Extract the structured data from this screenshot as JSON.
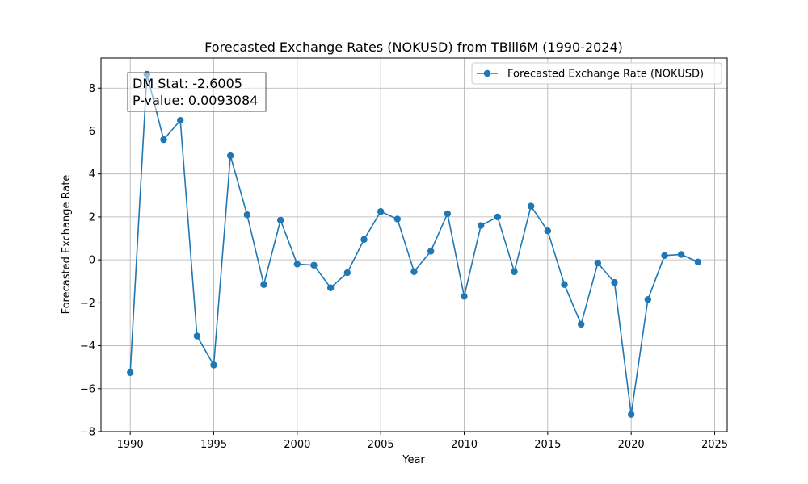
{
  "chart_data": {
    "type": "line",
    "title": "Forecasted Exchange Rates (NOKUSD) from TBill6M (1990-2024)",
    "xlabel": "Year",
    "ylabel": "Forecasted Exchange Rate",
    "xlim": [
      1988.25,
      2025.75
    ],
    "ylim": [
      -8.0,
      9.4
    ],
    "x_ticks": [
      1990,
      1995,
      2000,
      2005,
      2010,
      2015,
      2020,
      2025
    ],
    "y_ticks": [
      -8,
      -6,
      -4,
      -2,
      0,
      2,
      4,
      6,
      8
    ],
    "grid": true,
    "legend_position": "top-right",
    "series_color": "#1f77b4",
    "annotation": {
      "line1": "DM Stat: -2.6005",
      "line2": "P-value: 0.0093084"
    },
    "series": [
      {
        "name": "Forecasted Exchange Rate (NOKUSD)",
        "x": [
          1990,
          1991,
          1992,
          1993,
          1994,
          1995,
          1996,
          1997,
          1998,
          1999,
          2000,
          2001,
          2002,
          2003,
          2004,
          2005,
          2006,
          2007,
          2008,
          2009,
          2010,
          2011,
          2012,
          2013,
          2014,
          2015,
          2016,
          2017,
          2018,
          2019,
          2020,
          2021,
          2022,
          2023,
          2024
        ],
        "values": [
          -5.25,
          8.65,
          5.6,
          6.5,
          -3.55,
          -4.9,
          4.85,
          2.1,
          -1.15,
          1.85,
          -0.2,
          -0.25,
          -1.3,
          -0.6,
          0.95,
          2.25,
          1.9,
          -0.55,
          0.4,
          2.15,
          -1.7,
          1.6,
          2.0,
          -0.55,
          2.5,
          1.35,
          -1.15,
          -3.0,
          -0.15,
          -1.05,
          -7.2,
          -1.85,
          0.2,
          0.25,
          -0.1
        ]
      }
    ]
  }
}
